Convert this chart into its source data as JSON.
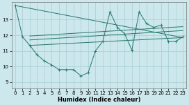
{
  "xlabel": "Humidex (Indice chaleur)",
  "bg_color": "#cce8ec",
  "line_color": "#2e7d72",
  "grid_color": "#a8cdd2",
  "xlim": [
    -0.5,
    23.5
  ],
  "ylim": [
    8.6,
    14.1
  ],
  "yticks": [
    9,
    10,
    11,
    12,
    13
  ],
  "xticks": [
    0,
    1,
    2,
    3,
    4,
    5,
    6,
    7,
    8,
    9,
    10,
    11,
    12,
    13,
    14,
    15,
    16,
    17,
    18,
    19,
    20,
    21,
    22,
    23
  ],
  "main_line": [
    [
      0,
      13.9
    ],
    [
      1,
      11.9
    ],
    [
      2,
      11.35
    ],
    [
      3,
      10.75
    ],
    [
      4,
      10.35
    ],
    [
      5,
      10.1
    ],
    [
      6,
      9.8
    ],
    [
      7,
      9.8
    ],
    [
      8,
      9.8
    ],
    [
      9,
      9.4
    ],
    [
      10,
      9.6
    ],
    [
      11,
      11.0
    ],
    [
      12,
      11.6
    ],
    [
      13,
      13.5
    ],
    [
      14,
      12.5
    ],
    [
      15,
      12.1
    ],
    [
      16,
      11.05
    ],
    [
      17,
      13.5
    ],
    [
      18,
      12.75
    ],
    [
      19,
      12.5
    ],
    [
      20,
      12.65
    ],
    [
      21,
      11.6
    ],
    [
      22,
      11.6
    ],
    [
      23,
      11.9
    ]
  ],
  "trend_lines": [
    [
      [
        2,
        11.35
      ],
      [
        23,
        11.85
      ]
    ],
    [
      [
        2,
        11.7
      ],
      [
        23,
        12.3
      ]
    ],
    [
      [
        2,
        11.95
      ],
      [
        23,
        12.55
      ]
    ],
    [
      [
        0,
        13.9
      ],
      [
        23,
        11.85
      ]
    ]
  ]
}
